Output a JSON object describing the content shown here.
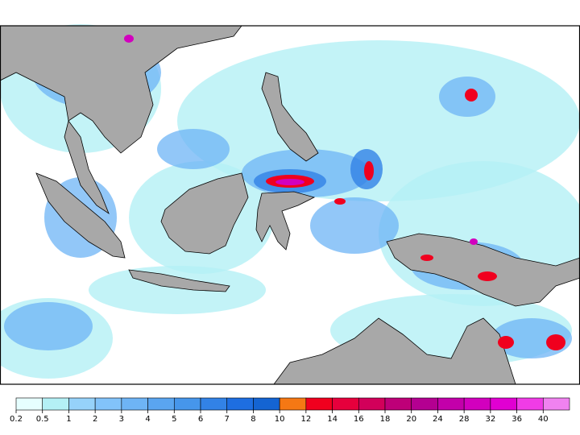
{
  "colorbar": {
    "levels": [
      0.2,
      0.5,
      1,
      2,
      3,
      4,
      5,
      6,
      7,
      8,
      10,
      12,
      14,
      16,
      18,
      20,
      24,
      28,
      32,
      36,
      40
    ],
    "colors": [
      "#e6ffff",
      "#b4f0f5",
      "#96d2fa",
      "#82c3fa",
      "#6eb4f5",
      "#5aa5f0",
      "#4696eb",
      "#3282e6",
      "#1e6ee1",
      "#1464d2",
      "#f57814",
      "#f0001e",
      "#e6003c",
      "#d2005a",
      "#be0078",
      "#b40091",
      "#c300aa",
      "#d200be",
      "#e100d2",
      "#f03ce6",
      "#f082f0"
    ]
  }
}
